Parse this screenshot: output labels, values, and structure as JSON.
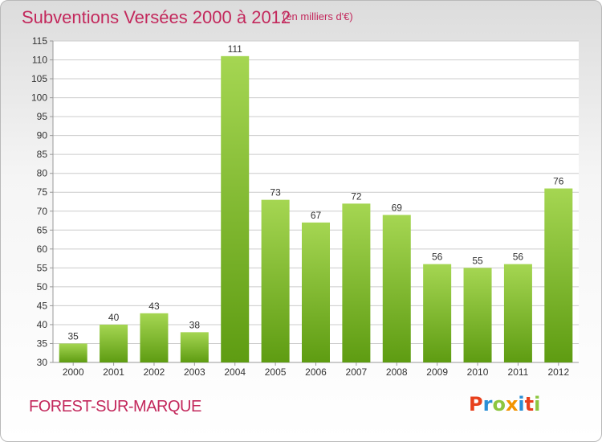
{
  "header": {
    "title": "Subventions Versées 2000 à 2012",
    "subtitle": "(en milliers d'€)"
  },
  "footer": {
    "commune": "FOREST-SUR-MARQUE",
    "brand": "Proxiti",
    "brand_colors": [
      "#e8401c",
      "#2a8fd6",
      "#8cc63f",
      "#f29400",
      "#2a8fd6",
      "#e8401c",
      "#8cc63f"
    ]
  },
  "colors": {
    "title": "#c3285c",
    "bar_light": "#a5d652",
    "bar_dark": "#5e9c12",
    "grid": "#cccccc",
    "axis_text": "#333333"
  },
  "chart_data": {
    "type": "bar",
    "categories": [
      "2000",
      "2001",
      "2002",
      "2003",
      "2004",
      "2005",
      "2006",
      "2007",
      "2008",
      "2009",
      "2010",
      "2011",
      "2012"
    ],
    "values": [
      35,
      40,
      43,
      38,
      111,
      73,
      67,
      72,
      69,
      56,
      55,
      56,
      76
    ],
    "ylim": [
      30,
      115
    ],
    "yticks": [
      30,
      35,
      40,
      45,
      50,
      55,
      60,
      65,
      70,
      75,
      80,
      85,
      90,
      95,
      100,
      105,
      110,
      115
    ],
    "grid": true,
    "title": "Subventions Versées 2000 à 2012",
    "xlabel": "",
    "ylabel": ""
  }
}
